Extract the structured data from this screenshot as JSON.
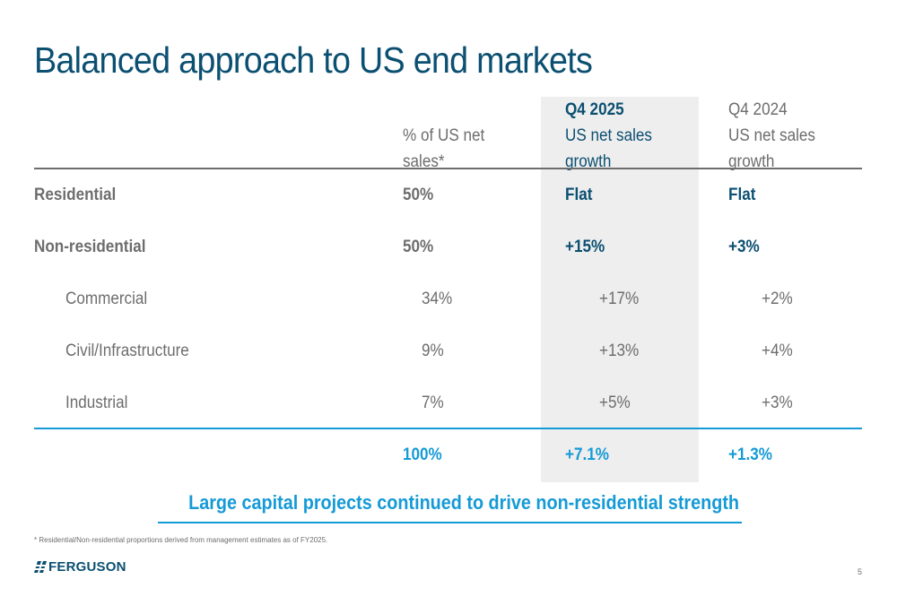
{
  "title": "Balanced approach to US end markets",
  "table": {
    "headers": {
      "pct": [
        "% of US net",
        "sales*"
      ],
      "q4_2025": [
        "Q4 2025",
        "US net sales",
        "growth"
      ],
      "q4_2024": [
        "Q4 2024",
        "US net sales",
        "growth"
      ]
    },
    "rows": [
      {
        "label": "Residential",
        "pct": "50%",
        "q4_2025": "Flat",
        "q4_2024": "Flat"
      },
      {
        "label": "Non-residential",
        "pct": "50%",
        "q4_2025": "+15%",
        "q4_2024": "+3%"
      },
      {
        "label": "Commercial",
        "pct": "34%",
        "q4_2025": "+17%",
        "q4_2024": "+2%"
      },
      {
        "label": "Civil/Infrastructure",
        "pct": "9%",
        "q4_2025": "+13%",
        "q4_2024": "+4%"
      },
      {
        "label": "Industrial",
        "pct": "7%",
        "q4_2025": "+5%",
        "q4_2024": "+3%"
      }
    ],
    "total": {
      "pct": "100%",
      "q4_2025": "+7.1%",
      "q4_2024": "+1.3%"
    }
  },
  "callout": "Large capital projects continued to drive non-residential strength",
  "footnote": "* Residential/Non-residential proportions derived from management estimates as of FY2025.",
  "logo_text": "FERGUSON",
  "page_number": "5",
  "colors": {
    "title": "#0b4f71",
    "accent": "#159ad6",
    "text": "#404040",
    "highlight_bg": "#eeeeee"
  }
}
